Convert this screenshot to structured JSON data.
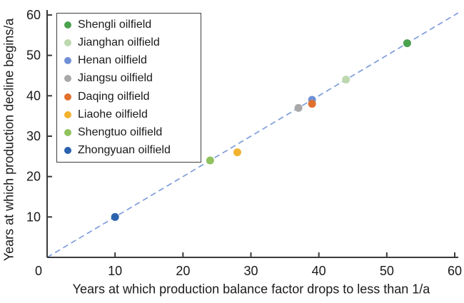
{
  "chart_data": {
    "type": "scatter",
    "title": "",
    "xlabel": "Years at which production balance factor drops to less than 1/a",
    "ylabel": "Years at which production decline begins/a",
    "xlim": [
      0,
      60
    ],
    "ylim": [
      0,
      60
    ],
    "x_ticks": [
      0,
      10,
      20,
      30,
      40,
      50,
      60
    ],
    "y_ticks": [
      10,
      20,
      30,
      40,
      50,
      60
    ],
    "grid": false,
    "legend_position": "upper-left-inside",
    "series": [
      {
        "name": "Shengli oilfield",
        "color": "#4BA24E",
        "points": [
          [
            53,
            53
          ]
        ]
      },
      {
        "name": "Jianghan oilfield",
        "color": "#BDD8AE",
        "points": [
          [
            44,
            44
          ]
        ]
      },
      {
        "name": "Henan oilfield",
        "color": "#7090D5",
        "points": [
          [
            39,
            39
          ]
        ]
      },
      {
        "name": "Jiangsu oilfield",
        "color": "#A8A8A8",
        "points": [
          [
            37,
            37
          ]
        ]
      },
      {
        "name": "Daqing oilfield",
        "color": "#E1702F",
        "points": [
          [
            39,
            38
          ]
        ]
      },
      {
        "name": "Liaohe oilfield",
        "color": "#F2B22E",
        "points": [
          [
            28,
            26
          ]
        ]
      },
      {
        "name": "Shengtuo oilfield",
        "color": "#90C25E",
        "points": [
          [
            24,
            24
          ]
        ]
      },
      {
        "name": "Zhongyuan oilfield",
        "color": "#2A62AE",
        "points": [
          [
            10,
            10
          ]
        ]
      }
    ],
    "reference_line": {
      "style": "dashed",
      "color": "#7F9DDB",
      "from": [
        0,
        0
      ],
      "to": [
        60.5,
        60.5
      ]
    },
    "axis_color": "#3a3a3a",
    "marker_radius": 5.5
  }
}
